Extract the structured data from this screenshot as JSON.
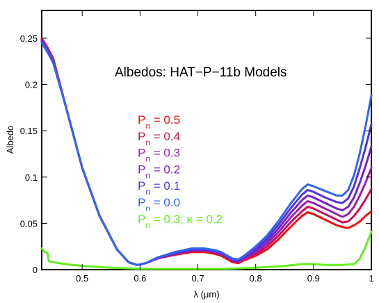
{
  "chart_data": {
    "type": "line",
    "title": "Albedos: HAT−P−11b Models",
    "xlabel": "λ (μm)",
    "ylabel": "Albedo",
    "xlim": [
      0.43,
      1.0
    ],
    "ylim": [
      0,
      0.28
    ],
    "xticks": [
      0.5,
      0.6,
      0.7,
      0.8,
      0.9,
      1.0
    ],
    "xtick_labels": [
      "0.5",
      "0.6",
      "0.7",
      "0.8",
      "0.9",
      "1"
    ],
    "yticks": [
      0,
      0.05,
      0.1,
      0.15,
      0.2,
      0.25
    ],
    "ytick_labels": [
      "0",
      "0.05",
      "0.1",
      "0.15",
      "0.2",
      "0.25"
    ],
    "grid": false,
    "legend_placement": "center-left",
    "series": [
      {
        "name": "0.5",
        "legend_main": "P",
        "legend_sub": "n",
        "legend_value": " = 0.5",
        "color": "#ee1111",
        "x": [
          0.43,
          0.44,
          0.45,
          0.47,
          0.5,
          0.53,
          0.56,
          0.58,
          0.595,
          0.61,
          0.63,
          0.66,
          0.69,
          0.71,
          0.73,
          0.74,
          0.76,
          0.77,
          0.78,
          0.8,
          0.82,
          0.84,
          0.86,
          0.88,
          0.89,
          0.9,
          0.92,
          0.94,
          0.95,
          0.96,
          0.97,
          0.98,
          0.99,
          1.0
        ],
        "y": [
          0.25,
          0.24,
          0.228,
          0.18,
          0.11,
          0.058,
          0.022,
          0.008,
          0.005,
          0.007,
          0.012,
          0.016,
          0.019,
          0.019,
          0.017,
          0.015,
          0.008,
          0.007,
          0.01,
          0.015,
          0.022,
          0.033,
          0.046,
          0.058,
          0.062,
          0.06,
          0.054,
          0.048,
          0.046,
          0.045,
          0.048,
          0.052,
          0.058,
          0.063
        ]
      },
      {
        "name": "0.4",
        "legend_main": "P",
        "legend_sub": "n",
        "legend_value": " = 0.4",
        "color": "#cc1155",
        "x": [
          0.43,
          0.44,
          0.45,
          0.47,
          0.5,
          0.53,
          0.56,
          0.58,
          0.595,
          0.61,
          0.63,
          0.66,
          0.69,
          0.71,
          0.73,
          0.74,
          0.76,
          0.77,
          0.78,
          0.8,
          0.82,
          0.84,
          0.86,
          0.88,
          0.89,
          0.9,
          0.92,
          0.94,
          0.95,
          0.96,
          0.97,
          0.98,
          0.99,
          1.0
        ],
        "y": [
          0.249,
          0.239,
          0.227,
          0.18,
          0.11,
          0.058,
          0.022,
          0.008,
          0.005,
          0.007,
          0.012,
          0.017,
          0.02,
          0.02,
          0.018,
          0.016,
          0.009,
          0.008,
          0.011,
          0.017,
          0.025,
          0.037,
          0.051,
          0.063,
          0.068,
          0.066,
          0.06,
          0.054,
          0.051,
          0.052,
          0.058,
          0.066,
          0.076,
          0.087
        ]
      },
      {
        "name": "0.3",
        "legend_main": "P",
        "legend_sub": "n",
        "legend_value": " = 0.3",
        "color": "#9922aa",
        "x": [
          0.43,
          0.44,
          0.45,
          0.47,
          0.5,
          0.53,
          0.56,
          0.58,
          0.595,
          0.61,
          0.63,
          0.66,
          0.69,
          0.71,
          0.73,
          0.74,
          0.76,
          0.77,
          0.78,
          0.8,
          0.82,
          0.84,
          0.86,
          0.88,
          0.89,
          0.9,
          0.92,
          0.94,
          0.95,
          0.96,
          0.97,
          0.98,
          0.99,
          1.0
        ],
        "y": [
          0.248,
          0.238,
          0.226,
          0.18,
          0.11,
          0.058,
          0.022,
          0.008,
          0.005,
          0.007,
          0.012,
          0.017,
          0.021,
          0.021,
          0.019,
          0.017,
          0.01,
          0.009,
          0.012,
          0.019,
          0.028,
          0.041,
          0.056,
          0.069,
          0.074,
          0.072,
          0.066,
          0.06,
          0.057,
          0.06,
          0.068,
          0.08,
          0.094,
          0.11
        ]
      },
      {
        "name": "0.2",
        "legend_main": "P",
        "legend_sub": "n",
        "legend_value": " = 0.2",
        "color": "#7722cc",
        "x": [
          0.43,
          0.44,
          0.45,
          0.47,
          0.5,
          0.53,
          0.56,
          0.58,
          0.595,
          0.61,
          0.63,
          0.66,
          0.69,
          0.71,
          0.73,
          0.74,
          0.76,
          0.77,
          0.78,
          0.8,
          0.82,
          0.84,
          0.86,
          0.88,
          0.89,
          0.9,
          0.92,
          0.94,
          0.95,
          0.96,
          0.97,
          0.98,
          0.99,
          1.0
        ],
        "y": [
          0.247,
          0.237,
          0.225,
          0.18,
          0.11,
          0.058,
          0.022,
          0.008,
          0.005,
          0.007,
          0.013,
          0.018,
          0.021,
          0.021,
          0.019,
          0.017,
          0.01,
          0.009,
          0.013,
          0.021,
          0.031,
          0.045,
          0.061,
          0.075,
          0.08,
          0.078,
          0.072,
          0.066,
          0.064,
          0.068,
          0.078,
          0.094,
          0.112,
          0.133
        ]
      },
      {
        "name": "0.1",
        "legend_main": "P",
        "legend_sub": "n",
        "legend_value": " = 0.1",
        "color": "#5533dd",
        "x": [
          0.43,
          0.44,
          0.45,
          0.47,
          0.5,
          0.53,
          0.56,
          0.58,
          0.595,
          0.61,
          0.63,
          0.66,
          0.69,
          0.71,
          0.73,
          0.74,
          0.76,
          0.77,
          0.78,
          0.8,
          0.82,
          0.84,
          0.86,
          0.88,
          0.89,
          0.9,
          0.92,
          0.94,
          0.95,
          0.96,
          0.97,
          0.98,
          0.99,
          1.0
        ],
        "y": [
          0.246,
          0.236,
          0.224,
          0.18,
          0.11,
          0.058,
          0.022,
          0.008,
          0.005,
          0.007,
          0.013,
          0.018,
          0.022,
          0.022,
          0.02,
          0.018,
          0.011,
          0.01,
          0.014,
          0.023,
          0.034,
          0.049,
          0.066,
          0.081,
          0.086,
          0.084,
          0.078,
          0.073,
          0.072,
          0.077,
          0.09,
          0.11,
          0.132,
          0.157
        ]
      },
      {
        "name": "0.0",
        "legend_main": "P",
        "legend_sub": "n",
        "legend_value": " = 0.0",
        "color": "#3366ee",
        "x": [
          0.43,
          0.44,
          0.45,
          0.47,
          0.5,
          0.53,
          0.56,
          0.58,
          0.595,
          0.61,
          0.63,
          0.66,
          0.69,
          0.71,
          0.73,
          0.74,
          0.76,
          0.77,
          0.78,
          0.8,
          0.82,
          0.84,
          0.86,
          0.88,
          0.89,
          0.9,
          0.92,
          0.94,
          0.95,
          0.96,
          0.97,
          0.98,
          0.99,
          1.0
        ],
        "y": [
          0.245,
          0.235,
          0.223,
          0.18,
          0.11,
          0.058,
          0.022,
          0.008,
          0.005,
          0.007,
          0.013,
          0.019,
          0.023,
          0.023,
          0.021,
          0.019,
          0.012,
          0.011,
          0.015,
          0.025,
          0.037,
          0.053,
          0.071,
          0.087,
          0.092,
          0.09,
          0.085,
          0.08,
          0.08,
          0.086,
          0.102,
          0.126,
          0.155,
          0.188
        ]
      },
      {
        "name": "0.3; κ = 0.2",
        "legend_main": "P",
        "legend_sub": "n",
        "legend_value": " = 0.3; κ = 0.2",
        "color": "#66ee22",
        "x": [
          0.43,
          0.435,
          0.44,
          0.442,
          0.45,
          0.47,
          0.5,
          0.55,
          0.6,
          0.65,
          0.7,
          0.75,
          0.8,
          0.85,
          0.88,
          0.9,
          0.92,
          0.95,
          0.97,
          0.98,
          0.99,
          1.0
        ],
        "y": [
          0.023,
          0.019,
          0.018,
          0.009,
          0.008,
          0.006,
          0.004,
          0.002,
          0.001,
          0.001,
          0.001,
          0.001,
          0.002,
          0.004,
          0.006,
          0.006,
          0.005,
          0.005,
          0.006,
          0.012,
          0.025,
          0.041
        ]
      }
    ]
  }
}
